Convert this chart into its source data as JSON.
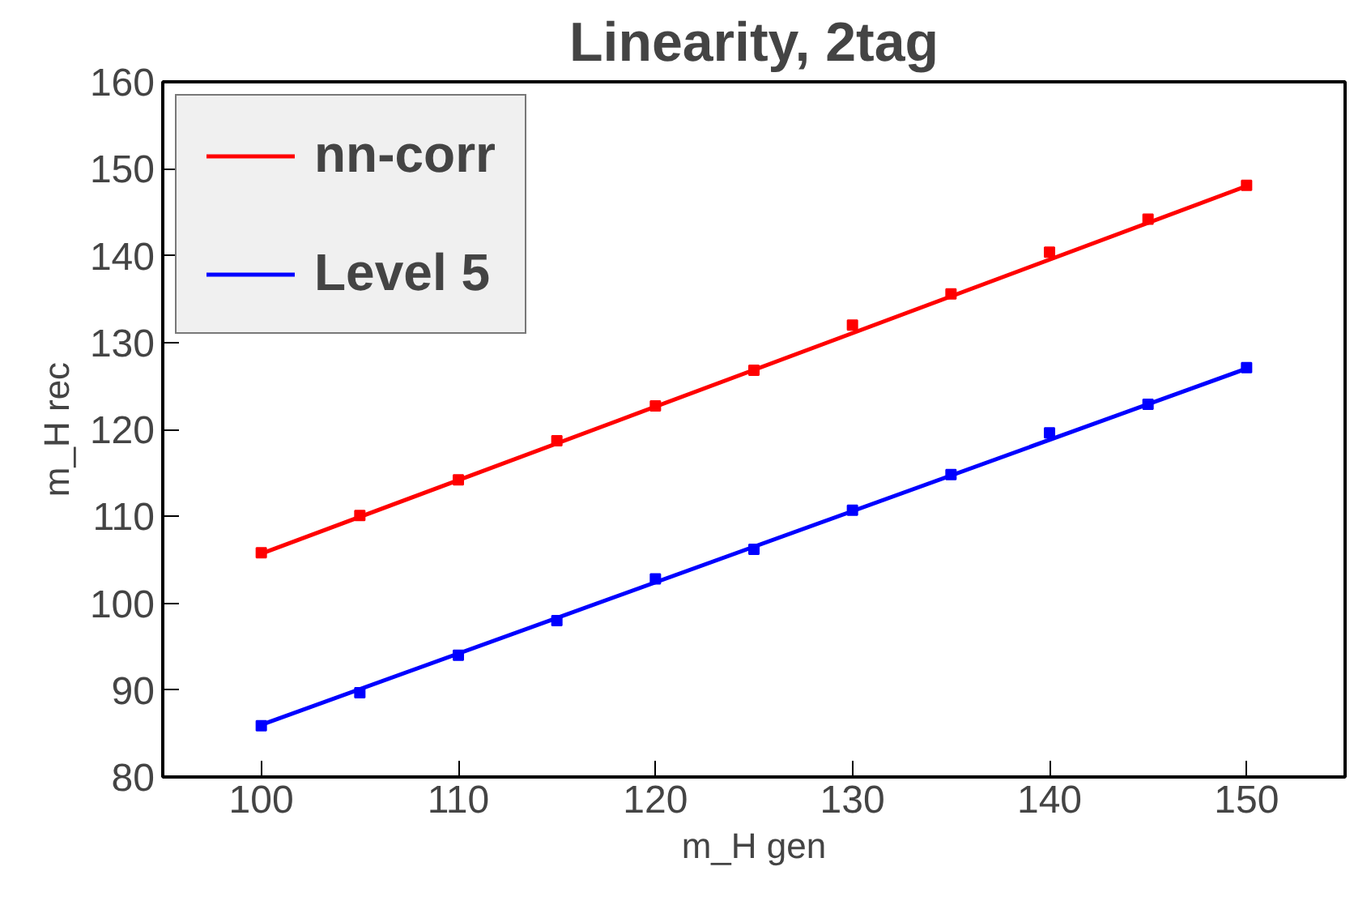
{
  "chart_data": {
    "type": "scatter",
    "title": "Linearity, 2tag",
    "xlabel": "m_H gen",
    "ylabel": "m_H rec",
    "xlim": [
      95,
      155
    ],
    "ylim": [
      80,
      160
    ],
    "xticks": [
      100,
      110,
      120,
      130,
      140,
      150
    ],
    "yticks": [
      80,
      90,
      100,
      110,
      120,
      130,
      140,
      150,
      160
    ],
    "grid": false,
    "legend": "top left",
    "marker": "square",
    "series": [
      {
        "color": "#ff0000",
        "x": [
          100,
          105,
          110,
          115,
          120,
          125,
          130,
          135,
          140,
          145,
          150
        ],
        "values": [
          105.8,
          110.1,
          114.2,
          118.7,
          122.7,
          126.8,
          132.0,
          135.6,
          140.4,
          144.2,
          148.1
        ]
      },
      {
        "color": "#0000ff",
        "x": [
          100,
          105,
          110,
          115,
          120,
          125,
          130,
          135,
          140,
          145,
          150
        ],
        "values": [
          85.9,
          89.7,
          94.0,
          98.0,
          102.8,
          106.2,
          110.7,
          114.8,
          119.6,
          122.9,
          127.1
        ]
      },
      {
        "type": "line",
        "marker": "none",
        "name": "nn-corr",
        "color": "#ff0000",
        "x": [
          100,
          150
        ],
        "values": [
          105.7,
          148.0
        ]
      },
      {
        "type": "line",
        "marker": "none",
        "name": "Level 5",
        "color": "#0000ff",
        "x": [
          100,
          150
        ],
        "values": [
          86.0,
          127.0
        ]
      }
    ]
  }
}
